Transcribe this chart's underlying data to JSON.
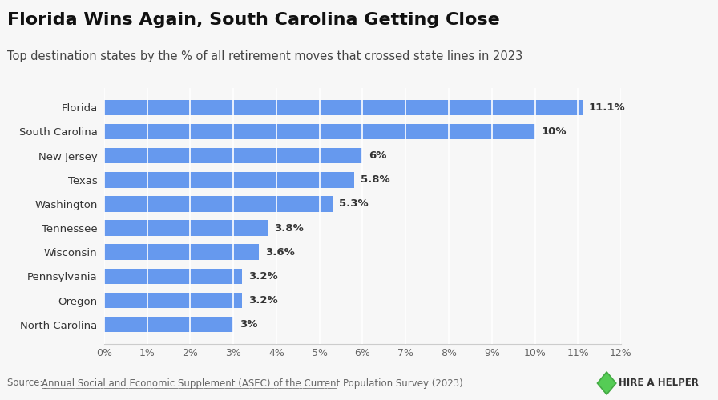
{
  "title": "Florida Wins Again, South Carolina Getting Close",
  "subtitle": "Top destination states by the % of all retirement moves that crossed state lines in 2023",
  "categories": [
    "North Carolina",
    "Oregon",
    "Pennsylvania",
    "Wisconsin",
    "Tennessee",
    "Washington",
    "Texas",
    "New Jersey",
    "South Carolina",
    "Florida"
  ],
  "values": [
    3.0,
    3.2,
    3.2,
    3.6,
    3.8,
    5.3,
    5.8,
    6.0,
    10.0,
    11.1
  ],
  "labels": [
    "3%",
    "3.2%",
    "3.2%",
    "3.6%",
    "3.8%",
    "5.3%",
    "5.8%",
    "6%",
    "10%",
    "11.1%"
  ],
  "bar_color": "#6699ee",
  "background_color": "#f7f7f7",
  "xlim": [
    0,
    12
  ],
  "xticks": [
    0,
    1,
    2,
    3,
    4,
    5,
    6,
    7,
    8,
    9,
    10,
    11,
    12
  ],
  "xtick_labels": [
    "0%",
    "1%",
    "2%",
    "3%",
    "4%",
    "5%",
    "6%",
    "7%",
    "8%",
    "9%",
    "10%",
    "11%",
    "12%"
  ],
  "source_plain": "Source: ",
  "source_link": "Annual Social and Economic Supplement (ASEC) of the Current Population Survey (2023)",
  "hire_text": "HIRE A HELPER",
  "title_fontsize": 16,
  "subtitle_fontsize": 10.5,
  "bar_label_fontsize": 9.5,
  "tick_fontsize": 9,
  "ylabel_fontsize": 9.5,
  "source_fontsize": 8.5
}
